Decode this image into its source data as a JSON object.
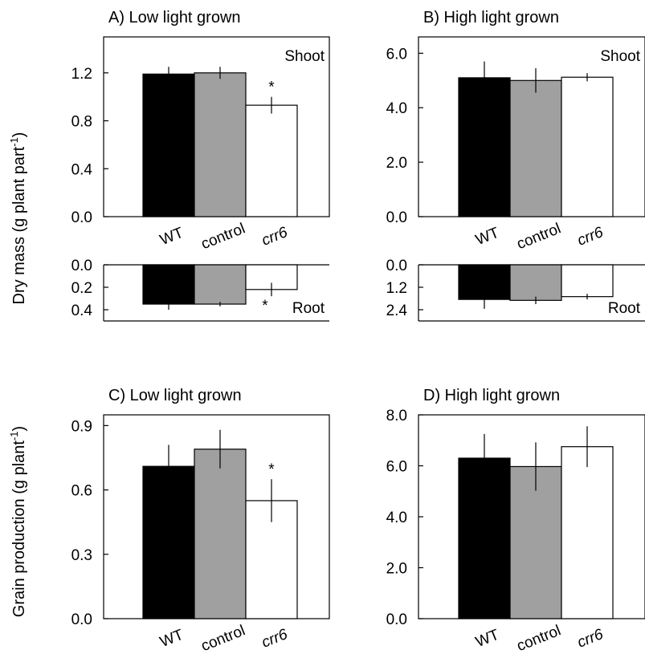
{
  "figure": {
    "ylabel_dry_mass": "Dry mass (g plant part",
    "ylabel_dry_mass_sup": "-1",
    "ylabel_dry_mass_end": ")",
    "ylabel_grain": "Grain production (g plant",
    "ylabel_grain_sup": "-1",
    "ylabel_grain_end": ")"
  },
  "colors": {
    "WT": "#000000",
    "control": "#a0a0a0",
    "crr6": "#ffffff"
  },
  "chart_data": [
    {
      "id": "A_shoot",
      "type": "bar",
      "title": "A) Low light grown",
      "panel_label": "Shoot",
      "categories": [
        "WT",
        "control",
        "crr6"
      ],
      "values": [
        1.19,
        1.2,
        0.93
      ],
      "errors": [
        0.06,
        0.05,
        0.07
      ],
      "significance": [
        "",
        "",
        "*"
      ],
      "ylim": [
        0,
        1.5
      ],
      "ticks": [
        "0.0",
        "0.4",
        "0.8",
        "1.2"
      ],
      "tick_values": [
        0,
        0.4,
        0.8,
        1.2
      ]
    },
    {
      "id": "A_root",
      "type": "bar",
      "panel_label": "Root",
      "categories": [
        "WT",
        "control",
        "crr6"
      ],
      "values": [
        0.35,
        0.35,
        0.22
      ],
      "errors": [
        0.05,
        0.02,
        0.06
      ],
      "significance": [
        "",
        "",
        "*"
      ],
      "ylim": [
        0,
        0.5
      ],
      "inverted": true,
      "ticks": [
        "0.0",
        "0.2",
        "0.4"
      ],
      "tick_values": [
        0,
        0.2,
        0.4
      ]
    },
    {
      "id": "B_shoot",
      "type": "bar",
      "title": "B) High light grown",
      "panel_label": "Shoot",
      "categories": [
        "WT",
        "control",
        "crr6"
      ],
      "values": [
        5.1,
        5.0,
        5.12
      ],
      "errors": [
        0.6,
        0.45,
        0.15
      ],
      "significance": [
        "",
        "",
        ""
      ],
      "ylim": [
        0,
        6.6
      ],
      "ticks": [
        "0.0",
        "2.0",
        "4.0",
        "6.0"
      ],
      "tick_values": [
        0,
        2,
        4,
        6
      ]
    },
    {
      "id": "B_root",
      "type": "bar",
      "panel_label": "Root",
      "categories": [
        "WT",
        "control",
        "crr6"
      ],
      "values": [
        1.85,
        1.9,
        1.7
      ],
      "errors": [
        0.5,
        0.2,
        0.15
      ],
      "significance": [
        "",
        "",
        ""
      ],
      "ylim": [
        0,
        3.0
      ],
      "inverted": true,
      "ticks": [
        "0.0",
        "1.2",
        "2.4"
      ],
      "tick_values": [
        0,
        1.2,
        2.4
      ]
    },
    {
      "id": "C_grain",
      "type": "bar",
      "title": "C) Low light grown",
      "categories": [
        "WT",
        "control",
        "crr6"
      ],
      "values": [
        0.71,
        0.79,
        0.55
      ],
      "errors": [
        0.1,
        0.09,
        0.1
      ],
      "significance": [
        "",
        "",
        "*"
      ],
      "ylim": [
        0,
        0.95
      ],
      "ticks": [
        "0.0",
        "0.3",
        "0.6",
        "0.9"
      ],
      "tick_values": [
        0,
        0.3,
        0.6,
        0.9
      ]
    },
    {
      "id": "D_grain",
      "type": "bar",
      "title": "D) High light grown",
      "categories": [
        "WT",
        "control",
        "crr6"
      ],
      "values": [
        6.3,
        5.97,
        6.75
      ],
      "errors": [
        0.95,
        0.95,
        0.8
      ],
      "significance": [
        "",
        "",
        ""
      ],
      "ylim": [
        0,
        8.0
      ],
      "ticks": [
        "0.0",
        "2.0",
        "4.0",
        "6.0",
        "8.0"
      ],
      "tick_values": [
        0,
        2,
        4,
        6,
        8
      ]
    }
  ]
}
